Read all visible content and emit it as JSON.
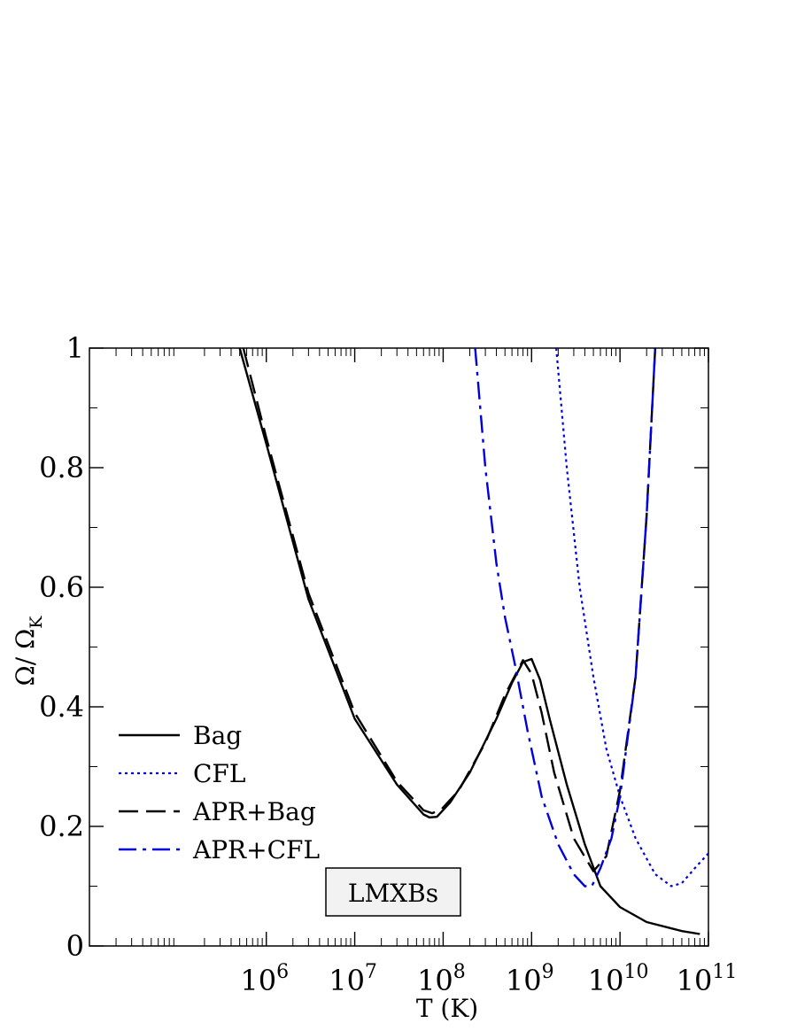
{
  "chart_data": {
    "type": "line",
    "xscale": "log",
    "xlabel": "T (K)",
    "ylabel_main": "Ω/ Ω",
    "ylabel_sub": "K",
    "xlim": [
      10000,
      100000000000
    ],
    "ylim": [
      0,
      1
    ],
    "xticks": [
      1000000,
      10000000,
      100000000,
      1000000000,
      10000000000,
      100000000000
    ],
    "xtick_labels": [
      {
        "base": "10",
        "exp": "6"
      },
      {
        "base": "10",
        "exp": "7"
      },
      {
        "base": "10",
        "exp": "8"
      },
      {
        "base": "10",
        "exp": "9"
      },
      {
        "base": "10",
        "exp": "10"
      },
      {
        "base": "10",
        "exp": "11"
      }
    ],
    "yticks": [
      0,
      0.2,
      0.4,
      0.6,
      0.8,
      1
    ],
    "ytick_labels": [
      "0",
      "0.2",
      "0.4",
      "0.6",
      "0.8",
      "1"
    ],
    "grid": false,
    "legend_position": "lower-left",
    "annotation": "LMXBs",
    "series": [
      {
        "name": "Bag",
        "color": "#000000",
        "dash": "solid",
        "points": [
          [
            500000,
            1.0
          ],
          [
            1000000,
            0.84
          ],
          [
            3000000,
            0.58
          ],
          [
            10000000,
            0.38
          ],
          [
            30000000,
            0.27
          ],
          [
            60000000,
            0.22
          ],
          [
            70000000,
            0.215
          ],
          [
            85000000,
            0.216
          ],
          [
            120000000,
            0.24
          ],
          [
            200000000,
            0.29
          ],
          [
            400000000,
            0.38
          ],
          [
            600000000,
            0.44
          ],
          [
            800000000,
            0.475
          ],
          [
            1000000000,
            0.48
          ],
          [
            1250000000,
            0.445
          ],
          [
            1600000000,
            0.38
          ],
          [
            2500000000,
            0.27
          ],
          [
            4000000000,
            0.17
          ],
          [
            6000000000,
            0.1
          ],
          [
            10000000000,
            0.065
          ],
          [
            20000000000,
            0.04
          ],
          [
            50000000000,
            0.025
          ],
          [
            80000000000,
            0.02
          ]
        ]
      },
      {
        "name": "CFL",
        "color": "#0000dd",
        "dash": "dotted",
        "points": [
          [
            1900000000,
            1.0
          ],
          [
            2500000000,
            0.8
          ],
          [
            3500000000,
            0.6
          ],
          [
            5000000000,
            0.45
          ],
          [
            7000000000,
            0.33
          ],
          [
            10000000000,
            0.25
          ],
          [
            15000000000,
            0.18
          ],
          [
            25000000000,
            0.12
          ],
          [
            38000000000,
            0.1
          ],
          [
            50000000000,
            0.105
          ],
          [
            70000000000,
            0.13
          ],
          [
            100000000000,
            0.155
          ]
        ]
      },
      {
        "name": "APR+Bag",
        "color": "#000000",
        "dash": "dashed",
        "points": [
          [
            550000,
            1.0
          ],
          [
            1000000,
            0.85
          ],
          [
            3000000,
            0.59
          ],
          [
            10000000,
            0.39
          ],
          [
            30000000,
            0.275
          ],
          [
            60000000,
            0.227
          ],
          [
            75000000,
            0.222
          ],
          [
            95000000,
            0.228
          ],
          [
            150000000,
            0.26
          ],
          [
            300000000,
            0.34
          ],
          [
            500000000,
            0.42
          ],
          [
            800000000,
            0.478
          ],
          [
            1000000000,
            0.455
          ],
          [
            1300000000,
            0.39
          ],
          [
            1800000000,
            0.29
          ],
          [
            3000000000,
            0.18
          ],
          [
            5000000000,
            0.125
          ],
          [
            7000000000,
            0.15
          ],
          [
            10000000000,
            0.26
          ],
          [
            15000000000,
            0.45
          ],
          [
            20000000000,
            0.72
          ],
          [
            25000000000,
            1.0
          ]
        ]
      },
      {
        "name": "APR+CFL",
        "color": "#0000dd",
        "dash": "dashdot",
        "points": [
          [
            230000000,
            1.0
          ],
          [
            300000000,
            0.8
          ],
          [
            400000000,
            0.64
          ],
          [
            500000000,
            0.55
          ],
          [
            650000000,
            0.47
          ],
          [
            900000000,
            0.36
          ],
          [
            1300000000,
            0.25
          ],
          [
            2000000000,
            0.17
          ],
          [
            3000000000,
            0.12
          ],
          [
            4000000000,
            0.1
          ],
          [
            4800000000,
            0.1
          ],
          [
            6000000000,
            0.13
          ],
          [
            8000000000,
            0.18
          ],
          [
            10000000000,
            0.25
          ],
          [
            15000000000,
            0.45
          ],
          [
            20000000000,
            0.72
          ],
          [
            25000000000,
            1.0
          ]
        ]
      }
    ]
  }
}
